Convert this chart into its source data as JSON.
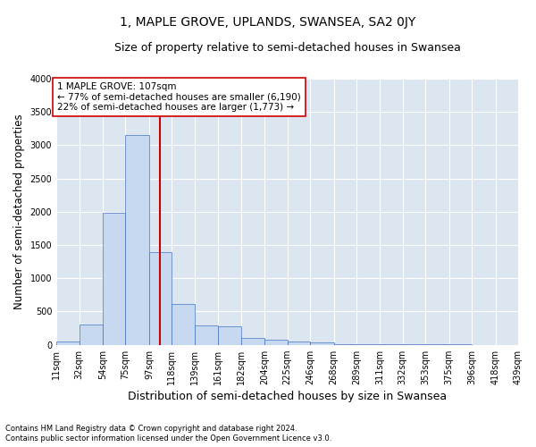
{
  "title": "1, MAPLE GROVE, UPLANDS, SWANSEA, SA2 0JY",
  "subtitle": "Size of property relative to semi-detached houses in Swansea",
  "xlabel": "Distribution of semi-detached houses by size in Swansea",
  "ylabel": "Number of semi-detached properties",
  "footnote1": "Contains HM Land Registry data © Crown copyright and database right 2024.",
  "footnote2": "Contains public sector information licensed under the Open Government Licence v3.0.",
  "annotation_title": "1 MAPLE GROVE: 107sqm",
  "annotation_line1": "← 77% of semi-detached houses are smaller (6,190)",
  "annotation_line2": "22% of semi-detached houses are larger (1,773) →",
  "property_size": 107,
  "bar_left_edges": [
    11,
    32,
    54,
    75,
    97,
    118,
    139,
    161,
    182,
    204,
    225,
    246,
    268,
    289,
    311,
    332,
    353,
    375,
    396,
    418,
    439
  ],
  "bar_heights": [
    50,
    300,
    1980,
    3150,
    1400,
    620,
    290,
    280,
    100,
    70,
    50,
    30,
    15,
    10,
    8,
    5,
    4,
    3,
    2,
    2,
    0
  ],
  "tick_labels": [
    "11sqm",
    "32sqm",
    "54sqm",
    "75sqm",
    "97sqm",
    "118sqm",
    "139sqm",
    "161sqm",
    "182sqm",
    "204sqm",
    "225sqm",
    "246sqm",
    "268sqm",
    "289sqm",
    "311sqm",
    "332sqm",
    "353sqm",
    "375sqm",
    "396sqm",
    "418sqm",
    "439sqm"
  ],
  "ylim": [
    0,
    4000
  ],
  "yticks": [
    0,
    500,
    1000,
    1500,
    2000,
    2500,
    3000,
    3500,
    4000
  ],
  "bar_color": "#c6d9f0",
  "bar_edge_color": "#4472c4",
  "vline_color": "#cc0000",
  "bg_color": "#dce6f1",
  "annotation_box_color": "#ffffff",
  "annotation_box_edge": "#cc0000",
  "grid_color": "#ffffff",
  "title_fontsize": 10,
  "subtitle_fontsize": 9,
  "axis_label_fontsize": 8.5,
  "tick_fontsize": 7,
  "annotation_fontsize": 7.5
}
